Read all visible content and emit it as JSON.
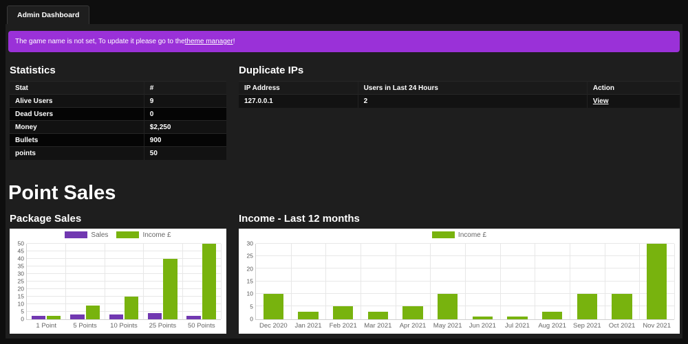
{
  "window": {
    "tab_label": "Admin Dashboard"
  },
  "alert": {
    "text_before": "The game name is not set, To update it please go to the ",
    "link_text": "theme manager",
    "text_after": "!",
    "bg_color": "#9a31d8"
  },
  "statistics": {
    "title": "Statistics",
    "table": {
      "headers": [
        "Stat",
        "#"
      ],
      "rows": [
        [
          "Alive Users",
          "9"
        ],
        [
          "Dead Users",
          "0"
        ],
        [
          "Money",
          "$2,250"
        ],
        [
          "Bullets",
          "900"
        ],
        [
          "points",
          "50"
        ]
      ]
    }
  },
  "duplicate_ips": {
    "title": "Duplicate IPs",
    "table": {
      "headers": [
        "IP Address",
        "Users in Last 24 Hours",
        "Action"
      ],
      "rows": [
        [
          "127.0.0.1",
          "2",
          "View"
        ]
      ]
    }
  },
  "point_sales": {
    "title": "Point Sales"
  },
  "colors": {
    "sales_purple": "#7138b1",
    "income_green": "#78b30e",
    "alert_purple": "#9a31d8"
  },
  "chart_data": [
    {
      "type": "bar",
      "title": "Package Sales",
      "categories": [
        "1 Point",
        "5 Points",
        "10 Points",
        "25 Points",
        "50 Points"
      ],
      "series": [
        {
          "name": "Sales",
          "color": "#7138b1",
          "values": [
            2,
            3,
            3,
            4,
            2
          ]
        },
        {
          "name": "Income £",
          "color": "#78b30e",
          "values": [
            2,
            8.8,
            15,
            40,
            50
          ]
        }
      ],
      "ylim": [
        0,
        50
      ],
      "ytick_step": 5,
      "grid": true,
      "legend_position": "top"
    },
    {
      "type": "bar",
      "title": "Income - Last 12 months",
      "categories": [
        "Dec 2020",
        "Jan 2021",
        "Feb 2021",
        "Mar 2021",
        "Apr 2021",
        "May 2021",
        "Jun 2021",
        "Jul 2021",
        "Aug 2021",
        "Sep 2021",
        "Oct 2021",
        "Nov 2021"
      ],
      "series": [
        {
          "name": "Income £",
          "color": "#78b30e",
          "values": [
            10,
            3,
            5,
            3,
            5,
            10,
            1,
            1,
            3,
            10,
            10,
            30
          ]
        }
      ],
      "ylim": [
        0,
        30
      ],
      "ytick_step": 5,
      "grid": true,
      "legend_position": "top"
    }
  ]
}
